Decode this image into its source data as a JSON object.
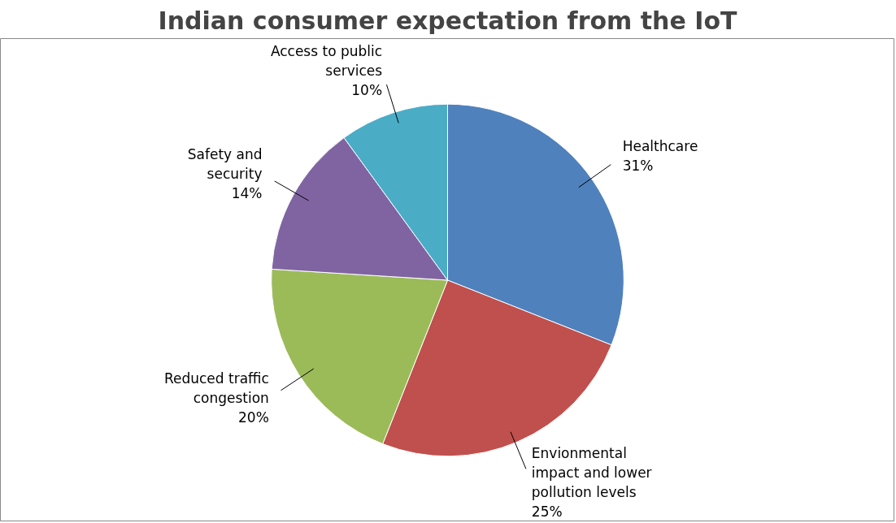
{
  "chart_data": {
    "type": "pie",
    "title": "Indian consumer expectation from the IoT",
    "categories": [
      "Healthcare",
      "Envionmental impact and lower pollution levels",
      "Reduced traffic congestion",
      "Safety and security",
      "Access to public services"
    ],
    "values": [
      31,
      25,
      20,
      14,
      10
    ],
    "value_labels": [
      "31%",
      "25%",
      "20%",
      "14%",
      "10%"
    ],
    "colors": [
      "#4f81bd",
      "#c0504d",
      "#9bbb59",
      "#8064a2",
      "#4bacc6"
    ]
  }
}
